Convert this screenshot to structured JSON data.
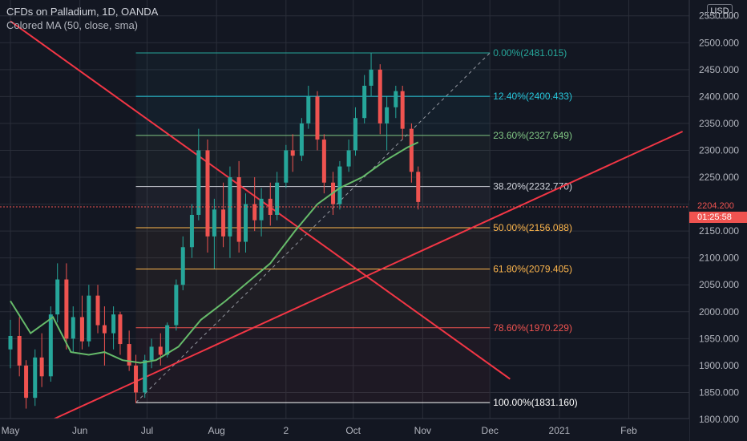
{
  "header": {
    "title": "CFDs on Palladium, 1D, OANDA",
    "indicator": "Colored MA (50, close, sma)",
    "currency": "USD"
  },
  "price_tags": {
    "current": "2204.200",
    "countdown": "01:25:58"
  },
  "colors": {
    "background": "#131722",
    "grid": "#2a2e39",
    "up": "#26a69a",
    "down": "#ef5350",
    "ma": "#66bb6a",
    "trendline": "#f23645"
  },
  "chart_data": {
    "type": "candlestick",
    "symbol": "CFDs on Palladium",
    "timeframe": "1D",
    "source": "OANDA",
    "ylim": [
      1800,
      2560
    ],
    "y_ticks": [
      "2550.000",
      "2500.000",
      "2450.000",
      "2400.000",
      "2350.000",
      "2300.000",
      "2250.000",
      "2200.000",
      "2150.000",
      "2100.000",
      "2050.000",
      "2000.000",
      "1950.000",
      "1900.000",
      "1850.000",
      "1800.000"
    ],
    "x_tick_labels": [
      "May",
      "Jun",
      "Jul",
      "Aug",
      "2",
      "Oct",
      "Nov",
      "Dec",
      "2021",
      "Feb"
    ],
    "x_range": [
      "2020-05-01",
      "2021-02-28"
    ],
    "ma_label": "Colored MA (50, close, sma)",
    "candles": [
      [
        "2020-05-01",
        1930,
        1985,
        1895,
        1955
      ],
      [
        "2020-05-05",
        1955,
        1990,
        1880,
        1900
      ],
      [
        "2020-05-08",
        1900,
        1910,
        1820,
        1840
      ],
      [
        "2020-05-12",
        1840,
        1930,
        1825,
        1915
      ],
      [
        "2020-05-15",
        1915,
        1960,
        1860,
        1880
      ],
      [
        "2020-05-19",
        1880,
        2010,
        1870,
        1995
      ],
      [
        "2020-05-22",
        1995,
        2090,
        1980,
        2060
      ],
      [
        "2020-05-26",
        2060,
        2090,
        1930,
        1950
      ],
      [
        "2020-05-29",
        1950,
        2010,
        1925,
        1990
      ],
      [
        "2020-06-02",
        1990,
        2030,
        1930,
        1945
      ],
      [
        "2020-06-05",
        1945,
        2050,
        1935,
        2030
      ],
      [
        "2020-06-09",
        2030,
        2050,
        1960,
        1975
      ],
      [
        "2020-06-12",
        1975,
        2010,
        1900,
        1960
      ],
      [
        "2020-06-16",
        1960,
        2010,
        1930,
        1995
      ],
      [
        "2020-06-19",
        1995,
        2000,
        1920,
        1940
      ],
      [
        "2020-06-23",
        1940,
        1965,
        1890,
        1900
      ],
      [
        "2020-06-26",
        1900,
        1920,
        1830,
        1850
      ],
      [
        "2020-06-30",
        1850,
        1920,
        1840,
        1910
      ],
      [
        "2020-07-03",
        1910,
        1950,
        1895,
        1935
      ],
      [
        "2020-07-07",
        1935,
        1960,
        1900,
        1920
      ],
      [
        "2020-07-10",
        1920,
        1980,
        1915,
        1975
      ],
      [
        "2020-07-14",
        1975,
        2060,
        1965,
        2050
      ],
      [
        "2020-07-17",
        2050,
        2140,
        2040,
        2120
      ],
      [
        "2020-07-21",
        2120,
        2200,
        2100,
        2180
      ],
      [
        "2020-07-24",
        2180,
        2340,
        2170,
        2300
      ],
      [
        "2020-07-28",
        2300,
        2320,
        2110,
        2140
      ],
      [
        "2020-07-31",
        2140,
        2210,
        2080,
        2190
      ],
      [
        "2020-08-04",
        2190,
        2240,
        2120,
        2140
      ],
      [
        "2020-08-07",
        2140,
        2270,
        2100,
        2250
      ],
      [
        "2020-08-11",
        2250,
        2280,
        2110,
        2130
      ],
      [
        "2020-08-14",
        2130,
        2220,
        2110,
        2200
      ],
      [
        "2020-08-18",
        2200,
        2250,
        2150,
        2170
      ],
      [
        "2020-08-21",
        2170,
        2230,
        2140,
        2210
      ],
      [
        "2020-08-25",
        2210,
        2240,
        2160,
        2180
      ],
      [
        "2020-08-28",
        2180,
        2260,
        2170,
        2240
      ],
      [
        "2020-09-01",
        2240,
        2310,
        2230,
        2300
      ],
      [
        "2020-09-04",
        2300,
        2330,
        2260,
        2290
      ],
      [
        "2020-09-08",
        2290,
        2360,
        2280,
        2350
      ],
      [
        "2020-09-11",
        2350,
        2420,
        2340,
        2400
      ],
      [
        "2020-09-15",
        2400,
        2410,
        2300,
        2320
      ],
      [
        "2020-09-18",
        2320,
        2330,
        2220,
        2240
      ],
      [
        "2020-09-22",
        2240,
        2260,
        2180,
        2200
      ],
      [
        "2020-09-25",
        2200,
        2280,
        2190,
        2270
      ],
      [
        "2020-09-29",
        2270,
        2320,
        2260,
        2300
      ],
      [
        "2020-10-02",
        2300,
        2380,
        2290,
        2360
      ],
      [
        "2020-10-06",
        2360,
        2440,
        2350,
        2420
      ],
      [
        "2020-10-09",
        2420,
        2481,
        2400,
        2450
      ],
      [
        "2020-10-13",
        2450,
        2460,
        2330,
        2350
      ],
      [
        "2020-10-16",
        2350,
        2400,
        2300,
        2380
      ],
      [
        "2020-10-20",
        2380,
        2420,
        2360,
        2410
      ],
      [
        "2020-10-23",
        2410,
        2420,
        2320,
        2340
      ],
      [
        "2020-10-27",
        2340,
        2350,
        2240,
        2260
      ],
      [
        "2020-10-30",
        2260,
        2270,
        2190,
        2204
      ]
    ],
    "moving_average": {
      "x": [
        "2020-05-01",
        "2020-05-10",
        "2020-05-20",
        "2020-05-28",
        "2020-06-05",
        "2020-06-12",
        "2020-06-20",
        "2020-06-28",
        "2020-07-05",
        "2020-07-15",
        "2020-07-25",
        "2020-08-05",
        "2020-08-15",
        "2020-08-25",
        "2020-09-05",
        "2020-09-15",
        "2020-09-25",
        "2020-10-05",
        "2020-10-15",
        "2020-10-25",
        "2020-10-30"
      ],
      "y": [
        2020,
        1960,
        1990,
        1925,
        1920,
        1925,
        1910,
        1905,
        1910,
        1935,
        1985,
        2020,
        2055,
        2090,
        2150,
        2200,
        2230,
        2250,
        2280,
        2305,
        2315
      ]
    },
    "trendlines": [
      {
        "from": [
          "2020-05-01",
          2540
        ],
        "to": [
          "2020-12-10",
          1875
        ]
      },
      {
        "from": [
          "2020-05-20",
          1800
        ],
        "to": [
          "2021-02-25",
          2335
        ]
      }
    ],
    "fib_dashed": {
      "from": [
        "2020-06-26",
        1831.16
      ],
      "to": [
        "2020-12-01",
        2481.015
      ]
    },
    "fib_x_range": [
      "2020-06-26",
      "2020-12-01"
    ],
    "fib_levels": [
      {
        "label": "0.00%(2481.015)",
        "price": 2481.015,
        "color": "#26a69a"
      },
      {
        "label": "12.40%(2400.433)",
        "price": 2400.433,
        "color": "#26c6da"
      },
      {
        "label": "23.60%(2327.649)",
        "price": 2327.649,
        "color": "#81c784"
      },
      {
        "label": "38.20%(2232.770)",
        "price": 2232.77,
        "color": "#d1d4dc"
      },
      {
        "label": "50.00%(2156.088)",
        "price": 2156.088,
        "color": "#ffb74d"
      },
      {
        "label": "61.80%(2079.405)",
        "price": 2079.405,
        "color": "#ffb74d"
      },
      {
        "label": "78.60%(1970.229)",
        "price": 1970.229,
        "color": "#ef5350"
      },
      {
        "label": "100.00%(1831.160)",
        "price": 1831.16,
        "color": "#ffffff"
      }
    ]
  }
}
